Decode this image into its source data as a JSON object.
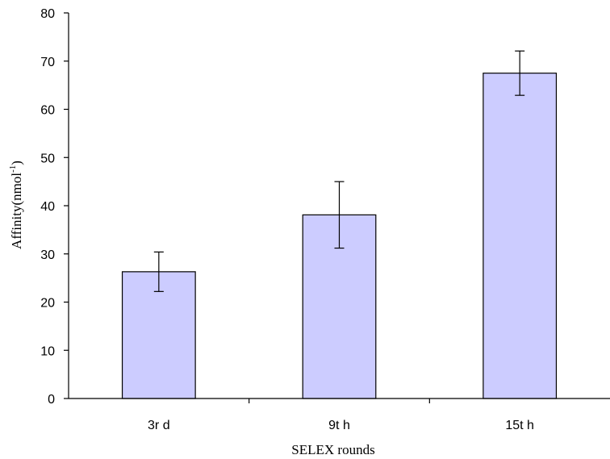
{
  "chart_data": {
    "type": "bar",
    "categories": [
      "3r d",
      "9t h",
      "15t h"
    ],
    "values": [
      26.3,
      38.1,
      67.5
    ],
    "errors": [
      4.1,
      6.9,
      4.6
    ],
    "xlabel": "SELEX rounds",
    "ylabel": "Affinity(nmol",
    "ylabel_superscript": "-1",
    "ylabel_suffix": ")",
    "ylim": [
      0,
      80
    ],
    "yticks": [
      0,
      10,
      20,
      30,
      40,
      50,
      60,
      70,
      80
    ],
    "grid": false,
    "legend": "none",
    "bar_color": "#ccccff",
    "bar_edge_color": "#000000"
  }
}
